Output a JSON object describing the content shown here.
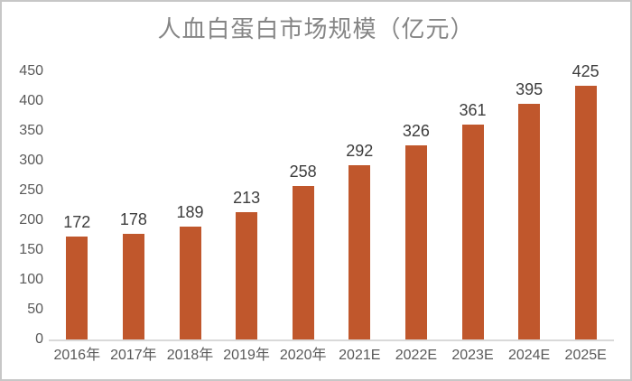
{
  "chart_data": {
    "type": "bar",
    "title": "人血白蛋白市场规模（亿元）",
    "categories": [
      "2016年",
      "2017年",
      "2018年",
      "2019年",
      "2020年",
      "2021E",
      "2022E",
      "2023E",
      "2024E",
      "2025E"
    ],
    "values": [
      172,
      178,
      189,
      213,
      258,
      292,
      326,
      361,
      395,
      425
    ],
    "xlabel": "",
    "ylabel": "",
    "ylim": [
      0,
      450
    ],
    "yticks": [
      0,
      50,
      100,
      150,
      200,
      250,
      300,
      350,
      400,
      450
    ],
    "grid": false,
    "legend": "none",
    "data_labels": true,
    "colors": {
      "bar": "#c0572c",
      "title_text": "#858585",
      "axis_text": "#595959",
      "value_label_text": "#3d3d3d",
      "axis_line": "#d9d9d9",
      "frame_border": "#c7c7c7",
      "background": "#ffffff"
    }
  }
}
